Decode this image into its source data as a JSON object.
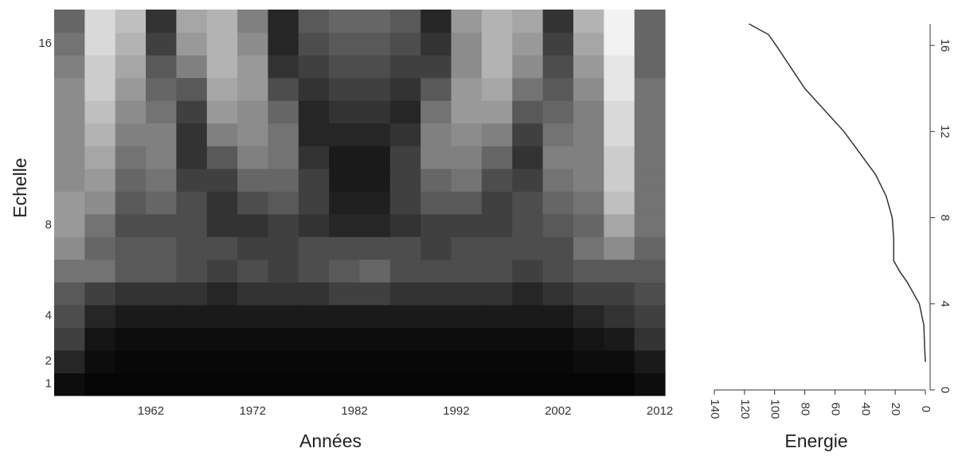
{
  "chart_data": [
    {
      "type": "heatmap",
      "xlabel": "Années",
      "ylabel": "Echelle",
      "x": [
        1954,
        1957,
        1960,
        1963,
        1966,
        1969,
        1972,
        1975,
        1978,
        1981,
        1984,
        1987,
        1990,
        1993,
        1996,
        1999,
        2002,
        2005,
        2008,
        2011
      ],
      "y": [
        1,
        2,
        3,
        4,
        5,
        6,
        7,
        8,
        9,
        10,
        11,
        12,
        13,
        14,
        15,
        16,
        17
      ],
      "z": [
        [
          5,
          2,
          2,
          2,
          2,
          2,
          2,
          2,
          2,
          2,
          2,
          2,
          2,
          2,
          2,
          2,
          2,
          2,
          2,
          5
        ],
        [
          15,
          5,
          3,
          3,
          3,
          3,
          3,
          3,
          3,
          3,
          3,
          3,
          3,
          3,
          3,
          3,
          3,
          5,
          5,
          10
        ],
        [
          25,
          8,
          5,
          5,
          5,
          5,
          5,
          5,
          5,
          5,
          5,
          5,
          5,
          5,
          5,
          5,
          5,
          8,
          10,
          20
        ],
        [
          30,
          15,
          10,
          10,
          10,
          10,
          10,
          10,
          10,
          10,
          10,
          10,
          10,
          10,
          10,
          10,
          10,
          15,
          20,
          25
        ],
        [
          35,
          25,
          20,
          20,
          20,
          15,
          20,
          20,
          20,
          25,
          25,
          20,
          20,
          20,
          20,
          15,
          20,
          25,
          25,
          30
        ],
        [
          45,
          45,
          35,
          35,
          30,
          25,
          30,
          25,
          30,
          35,
          40,
          30,
          30,
          30,
          30,
          25,
          30,
          35,
          35,
          35
        ],
        [
          55,
          40,
          35,
          35,
          30,
          30,
          25,
          25,
          30,
          30,
          30,
          30,
          25,
          30,
          30,
          30,
          30,
          45,
          55,
          40
        ],
        [
          60,
          45,
          30,
          30,
          30,
          20,
          20,
          25,
          20,
          15,
          15,
          20,
          25,
          25,
          25,
          30,
          35,
          40,
          65,
          45
        ],
        [
          60,
          55,
          35,
          40,
          30,
          20,
          30,
          35,
          25,
          12,
          12,
          25,
          35,
          35,
          25,
          30,
          40,
          45,
          75,
          45
        ],
        [
          55,
          60,
          40,
          45,
          25,
          25,
          40,
          40,
          25,
          10,
          10,
          25,
          40,
          45,
          30,
          25,
          45,
          50,
          80,
          45
        ],
        [
          55,
          65,
          45,
          50,
          20,
          35,
          50,
          45,
          20,
          10,
          10,
          25,
          50,
          50,
          40,
          20,
          50,
          50,
          80,
          45
        ],
        [
          55,
          70,
          50,
          50,
          20,
          50,
          55,
          45,
          15,
          15,
          15,
          20,
          50,
          55,
          50,
          25,
          45,
          50,
          85,
          45
        ],
        [
          55,
          75,
          55,
          45,
          25,
          60,
          55,
          40,
          15,
          20,
          20,
          15,
          45,
          60,
          60,
          35,
          40,
          50,
          85,
          45
        ],
        [
          55,
          80,
          60,
          40,
          35,
          65,
          60,
          30,
          20,
          25,
          25,
          20,
          35,
          60,
          65,
          45,
          35,
          55,
          90,
          45
        ],
        [
          50,
          80,
          65,
          35,
          50,
          70,
          60,
          20,
          25,
          30,
          30,
          25,
          25,
          55,
          70,
          55,
          30,
          60,
          90,
          40
        ],
        [
          45,
          85,
          70,
          25,
          60,
          70,
          55,
          15,
          30,
          35,
          35,
          30,
          20,
          55,
          70,
          60,
          25,
          65,
          95,
          40
        ],
        [
          40,
          85,
          75,
          20,
          65,
          70,
          50,
          15,
          35,
          40,
          40,
          35,
          15,
          60,
          70,
          65,
          20,
          70,
          95,
          40
        ]
      ],
      "zlim": [
        0,
        100
      ],
      "colors": [
        "#000000",
        "#ffffff"
      ],
      "xlim": [
        1952.5,
        2012.5
      ],
      "xticks": [
        1962,
        1972,
        1982,
        1992,
        2002,
        2012
      ],
      "ylim": [
        0.5,
        17.5
      ],
      "yticks": [
        1,
        2,
        4,
        8,
        16
      ]
    },
    {
      "type": "line",
      "xlabel": "Energie",
      "color": "#333333",
      "x": [
        0,
        0.5,
        1,
        4,
        12,
        17,
        21,
        21,
        22,
        26,
        33,
        54,
        80,
        99,
        104,
        117
      ],
      "values": [
        1.3,
        2,
        3,
        4,
        5,
        5.5,
        6,
        7,
        8,
        9,
        10,
        12,
        14,
        16,
        16.5,
        17
      ],
      "xlim": [
        140,
        0
      ],
      "xticks": [
        0,
        20,
        40,
        60,
        80,
        100,
        120,
        140
      ],
      "ylim": [
        0,
        17
      ],
      "yticks": [
        0,
        4,
        8,
        12,
        16
      ]
    }
  ]
}
